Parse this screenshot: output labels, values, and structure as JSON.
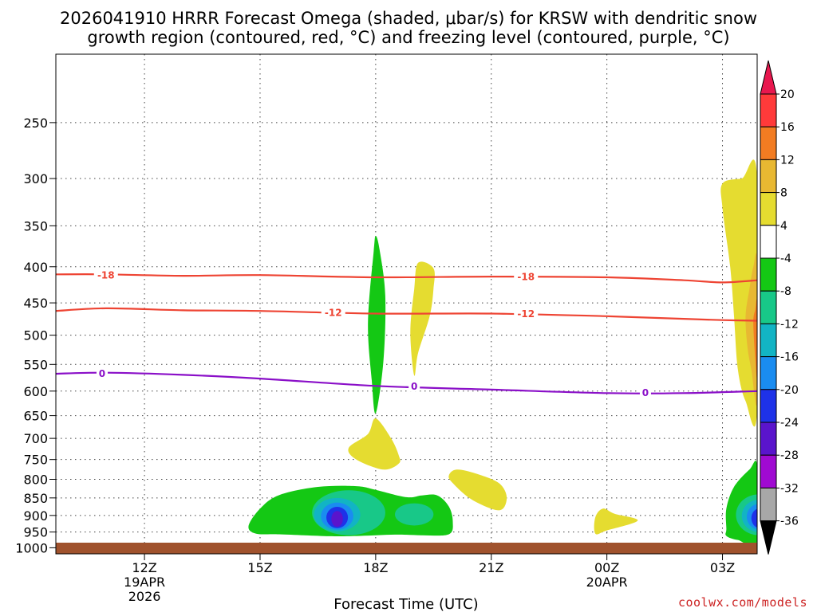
{
  "title": {
    "line1": "2026041910 HRRR Forecast Omega (shaded, μbar/s) for KRSW with dendritic snow",
    "line2": "growth region (contoured, red, °C) and freezing level (contoured, purple, °C)"
  },
  "credit": "coolwx.com/models",
  "colors": {
    "temperature_contour": "#ee4433",
    "freezing_level": "#8a0fc8",
    "ground": "#a0522d"
  },
  "chart_data": {
    "type": "time-height contour",
    "title": "2026041910 HRRR Forecast Omega (shaded, μbar/s) for KRSW with dendritic snow growth region (contoured, red, °C) and freezing level (contoured, purple, °C)",
    "xlabel": "Forecast Time (UTC)",
    "ylabel": "",
    "x_range_hours": [
      9.7,
      27.9
    ],
    "y_range_hPa": [
      1020,
      200
    ],
    "y_scale": "log-pressure",
    "grid": true,
    "x_ticks": [
      {
        "hour": 12,
        "label": "12Z",
        "sub1": "19APR",
        "sub2": "2026"
      },
      {
        "hour": 15,
        "label": "15Z",
        "sub1": "",
        "sub2": ""
      },
      {
        "hour": 18,
        "label": "18Z",
        "sub1": "",
        "sub2": ""
      },
      {
        "hour": 21,
        "label": "21Z",
        "sub1": "",
        "sub2": ""
      },
      {
        "hour": 24,
        "label": "00Z",
        "sub1": "20APR",
        "sub2": ""
      },
      {
        "hour": 27,
        "label": "03Z",
        "sub1": "",
        "sub2": ""
      }
    ],
    "y_ticks": [
      250,
      300,
      350,
      400,
      450,
      500,
      550,
      600,
      650,
      700,
      750,
      800,
      850,
      900,
      950,
      1000
    ],
    "colorbar": {
      "levels": [
        20,
        16,
        12,
        8,
        4,
        -4,
        -8,
        -12,
        -16,
        -20,
        -24,
        -28,
        -32,
        -36
      ],
      "colors": [
        "#e8174e",
        "#ff3a3a",
        "#f27c22",
        "#e8b832",
        "#e5dc30",
        "#ffffff",
        "#14c814",
        "#18c888",
        "#12b4c4",
        "#1a8cf0",
        "#1e32e8",
        "#5a14cc",
        "#a00ad2",
        "#a8a8a8",
        "#000000"
      ]
    },
    "temperature_contours": [
      {
        "label": "-18",
        "points": [
          [
            9.7,
            410
          ],
          [
            11,
            410
          ],
          [
            13,
            412
          ],
          [
            15,
            411
          ],
          [
            18,
            414
          ],
          [
            21,
            413
          ],
          [
            24,
            414
          ],
          [
            26,
            418
          ],
          [
            27,
            421
          ],
          [
            27.9,
            418
          ]
        ],
        "label_at": [
          [
            11.0,
            411
          ],
          [
            21.9,
            413
          ]
        ]
      },
      {
        "label": "-12",
        "points": [
          [
            9.7,
            462
          ],
          [
            11,
            458
          ],
          [
            13,
            461
          ],
          [
            15,
            462
          ],
          [
            18,
            466
          ],
          [
            21,
            466
          ],
          [
            24,
            470
          ],
          [
            26,
            474
          ],
          [
            27,
            476
          ],
          [
            27.9,
            477
          ]
        ],
        "label_at": [
          [
            16.9,
            464
          ],
          [
            21.9,
            466
          ]
        ]
      }
    ],
    "freezing_level": {
      "label": "0",
      "points": [
        [
          9.7,
          567
        ],
        [
          11,
          565
        ],
        [
          13,
          569
        ],
        [
          15,
          576
        ],
        [
          18,
          590
        ],
        [
          21,
          597
        ],
        [
          24,
          604
        ],
        [
          26,
          604
        ],
        [
          27.9,
          600
        ]
      ],
      "label_at": [
        [
          10.9,
          566
        ],
        [
          19.0,
          590
        ],
        [
          25.0,
          603
        ]
      ]
    },
    "omega_regions": [
      {
        "level": "-8",
        "shape": "blob",
        "points": [
          [
            14.7,
            932
          ],
          [
            15.0,
            880
          ],
          [
            15.5,
            842
          ],
          [
            16.5,
            820
          ],
          [
            17.5,
            818
          ],
          [
            18.0,
            828
          ],
          [
            18.8,
            848
          ],
          [
            19.2,
            843
          ],
          [
            19.6,
            843
          ],
          [
            19.9,
            874
          ],
          [
            20.0,
            918
          ],
          [
            19.9,
            957
          ],
          [
            19.2,
            960
          ],
          [
            18.5,
            958
          ],
          [
            17.6,
            962
          ],
          [
            16.8,
            963
          ],
          [
            15.5,
            957
          ],
          [
            14.9,
            955
          ]
        ]
      },
      {
        "level": "-12",
        "shape": "ellipse",
        "center": [
          17.3,
          905
        ],
        "radius_hours": 0.95,
        "radius_hPa": [
          76,
          55
        ]
      },
      {
        "level": "-12",
        "shape": "ellipse",
        "center": [
          19.0,
          900
        ],
        "radius_hours": 0.5,
        "radius_hPa": [
          35,
          30
        ]
      },
      {
        "level": "-16",
        "shape": "ellipse",
        "center": [
          17.0,
          905
        ],
        "radius_hours": 0.6,
        "radius_hPa": [
          55,
          43
        ]
      },
      {
        "level": "-20",
        "shape": "ellipse",
        "center": [
          17.0,
          908
        ],
        "radius_hours": 0.42,
        "radius_hPa": [
          45,
          35
        ]
      },
      {
        "level": "-24",
        "shape": "ellipse",
        "center": [
          17.0,
          910
        ],
        "radius_hours": 0.28,
        "radius_hPa": [
          35,
          28
        ]
      },
      {
        "level": "-28",
        "shape": "ellipse",
        "center": [
          17.0,
          912
        ],
        "radius_hours": 0.15,
        "radius_hPa": [
          25,
          22
        ]
      },
      {
        "level": "-8",
        "shape": "blob",
        "points": [
          [
            27.1,
            940
          ],
          [
            27.1,
            880
          ],
          [
            27.3,
            820
          ],
          [
            27.7,
            775
          ],
          [
            27.9,
            765
          ],
          [
            27.9,
            978
          ],
          [
            27.4,
            975
          ],
          [
            27.1,
            962
          ]
        ]
      },
      {
        "level": "-12",
        "shape": "ellipse",
        "center": [
          27.95,
          905
        ],
        "radius_hours": 0.6,
        "radius_hPa": [
          65,
          55
        ]
      },
      {
        "level": "-16",
        "shape": "ellipse",
        "center": [
          27.95,
          905
        ],
        "radius_hours": 0.45,
        "radius_hPa": [
          50,
          45
        ]
      },
      {
        "level": "-20",
        "shape": "ellipse",
        "center": [
          27.95,
          907
        ],
        "radius_hours": 0.32,
        "radius_hPa": [
          40,
          35
        ]
      },
      {
        "level": "-24",
        "shape": "ellipse",
        "center": [
          27.95,
          910
        ],
        "radius_hours": 0.2,
        "radius_hPa": [
          30,
          27
        ]
      },
      {
        "level": "-8",
        "shape": "blob",
        "points": [
          [
            17.8,
            480
          ],
          [
            17.95,
            380
          ],
          [
            18.0,
            362
          ],
          [
            18.1,
            378
          ],
          [
            18.25,
            440
          ],
          [
            18.2,
            545
          ],
          [
            18.0,
            645
          ],
          [
            17.9,
            580
          ]
        ]
      },
      {
        "level": "4",
        "shape": "blob",
        "points": [
          [
            18.9,
            495
          ],
          [
            19.0,
            430
          ],
          [
            19.1,
            395
          ],
          [
            19.5,
            402
          ],
          [
            19.5,
            430
          ],
          [
            19.4,
            470
          ],
          [
            19.1,
            530
          ],
          [
            19.0,
            570
          ]
        ]
      },
      {
        "level": "4",
        "shape": "blob",
        "points": [
          [
            17.3,
            722
          ],
          [
            17.8,
            690
          ],
          [
            18.0,
            656
          ],
          [
            18.4,
            700
          ],
          [
            18.6,
            740
          ],
          [
            18.6,
            760
          ],
          [
            18.2,
            775
          ],
          [
            17.5,
            750
          ]
        ]
      },
      {
        "level": "4",
        "shape": "blob",
        "points": [
          [
            19.9,
            790
          ],
          [
            20.1,
            775
          ],
          [
            20.6,
            785
          ],
          [
            21.2,
            810
          ],
          [
            21.4,
            850
          ],
          [
            21.2,
            885
          ],
          [
            20.5,
            855
          ],
          [
            20.0,
            810
          ]
        ]
      },
      {
        "level": "4",
        "shape": "blob",
        "points": [
          [
            23.7,
            905
          ],
          [
            23.9,
            880
          ],
          [
            24.2,
            895
          ],
          [
            24.8,
            915
          ],
          [
            24.0,
            945
          ],
          [
            23.7,
            955
          ]
        ]
      },
      {
        "level": "4",
        "shape": "blob",
        "points": [
          [
            27.0,
            305
          ],
          [
            27.5,
            300
          ],
          [
            27.9,
            298
          ],
          [
            27.9,
            640
          ],
          [
            27.6,
            620
          ],
          [
            27.4,
            560
          ],
          [
            27.3,
            470
          ],
          [
            27.2,
            400
          ],
          [
            27.0,
            330
          ]
        ]
      },
      {
        "level": "8",
        "shape": "blob",
        "points": [
          [
            27.6,
            470
          ],
          [
            27.7,
            430
          ],
          [
            27.8,
            400
          ],
          [
            27.9,
            395
          ],
          [
            27.9,
            620
          ],
          [
            27.75,
            560
          ],
          [
            27.65,
            520
          ]
        ]
      },
      {
        "level": "12",
        "shape": "blob",
        "points": [
          [
            27.8,
            480
          ],
          [
            27.85,
            460
          ],
          [
            27.9,
            450
          ],
          [
            27.9,
            570
          ],
          [
            27.85,
            540
          ]
        ]
      }
    ]
  }
}
